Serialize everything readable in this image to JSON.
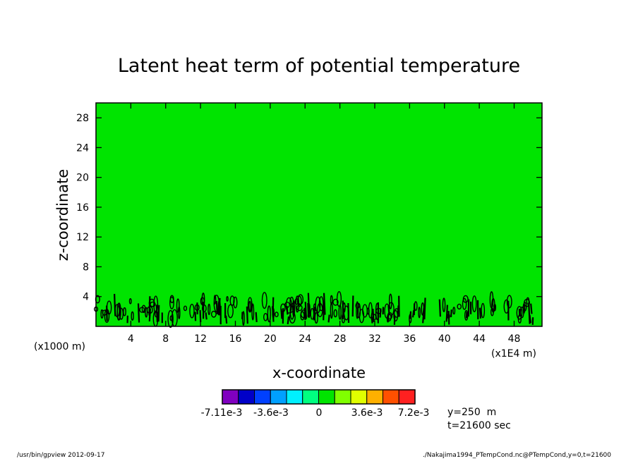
{
  "chart_data": {
    "type": "heatmap",
    "title": "Latent heat term of potential temperature",
    "xlabel": "x-coordinate",
    "ylabel": "z-coordinate",
    "x_unit_left": "(x1000 m)",
    "x_unit_right": "(x1E4 m)",
    "xlim": [
      0,
      51.2
    ],
    "ylim": [
      0,
      30
    ],
    "x_ticks": [
      4,
      8,
      12,
      16,
      20,
      24,
      28,
      32,
      36,
      40,
      44,
      48
    ],
    "y_ticks": [
      4,
      8,
      12,
      16,
      20,
      24,
      28
    ],
    "background_color": "#00e400",
    "contour_color": "#000000",
    "contour_band_z": [
      0.2,
      4.3
    ],
    "colorbar": {
      "colors": [
        "#8000c0",
        "#0000c8",
        "#0040ff",
        "#00a0ff",
        "#00f0ff",
        "#00ff80",
        "#00e400",
        "#80ff00",
        "#e0ff00",
        "#ffb000",
        "#ff5000",
        "#ff2020"
      ],
      "tick_labels": [
        "-7.11e-3",
        "-3.6e-3",
        "0",
        "3.6e-3",
        "7.2e-3"
      ]
    },
    "annotation": [
      "y=250  m",
      "t=21600 sec"
    ]
  },
  "footer": {
    "left": "/usr/bin/gpview   2012-09-17",
    "right": "./Nakajima1994_PTempCond.nc@PTempCond,y=0,t=21600"
  }
}
